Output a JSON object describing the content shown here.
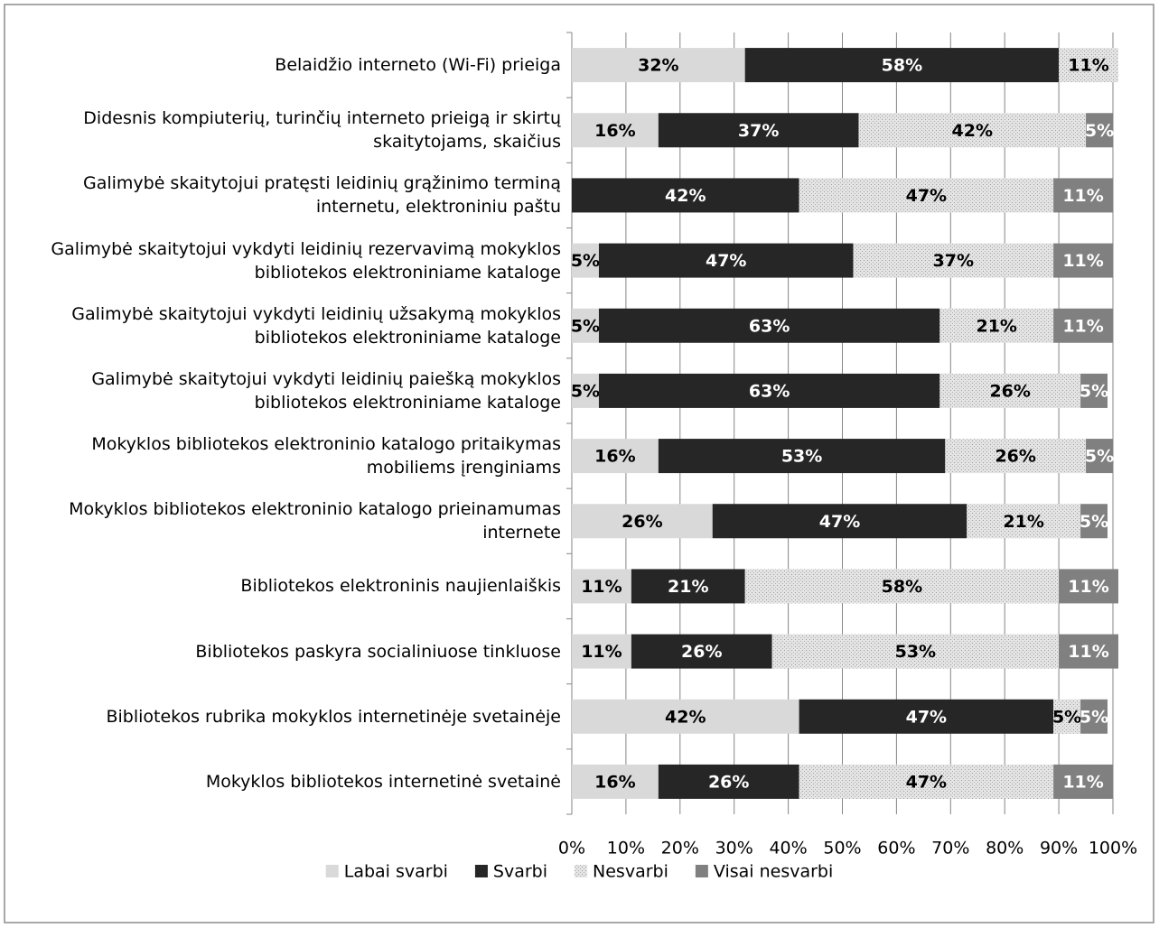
{
  "chart_data": {
    "type": "bar",
    "orientation": "horizontal",
    "stacked": true,
    "categories": [
      "Belaidžio interneto (Wi-Fi) prieiga",
      "Didesnis kompiuterių, turinčių interneto prieigą ir skirtų skaitytojams, skaičius",
      "Galimybė skaitytojui pratęsti leidinių grąžinimo terminą internetu, elektroniniu paštu",
      "Galimybė skaitytojui vykdyti leidinių rezervavimą mokyklos bibliotekos elektroniniame kataloge",
      "Galimybė skaitytojui vykdyti leidinių užsakymą mokyklos bibliotekos elektroniniame kataloge",
      "Galimybė skaitytojui vykdyti leidinių paiešką mokyklos bibliotekos elektroniniame kataloge",
      "Mokyklos bibliotekos elektroninio katalogo pritaikymas mobiliems įrenginiams",
      "Mokyklos bibliotekos elektroninio katalogo prieinamumas internete",
      "Bibliotekos elektroninis naujienlaiškis",
      "Bibliotekos paskyra socialiniuose tinkluose",
      "Bibliotekos rubrika mokyklos internetinėje svetainėje",
      "Mokyklos bibliotekos internetinė svetainė"
    ],
    "series": [
      {
        "name": "Labai svarbi",
        "color": "#d9d9d9",
        "label_color": "#000000",
        "values": [
          32,
          16,
          null,
          5,
          5,
          5,
          16,
          26,
          11,
          11,
          42,
          16
        ],
        "value_labels": [
          "32%",
          "16%",
          null,
          "5%",
          "5%",
          "5%",
          "16%",
          "26%",
          "11%",
          "11%",
          "42%",
          "16%"
        ]
      },
      {
        "name": "Svarbi",
        "color": "#262626",
        "label_color": "#ffffff",
        "values": [
          58,
          37,
          42,
          47,
          63,
          63,
          53,
          47,
          21,
          26,
          47,
          26
        ],
        "value_labels": [
          "58%",
          "37%",
          "42%",
          "47%",
          "63%",
          "63%",
          "53%",
          "47%",
          "21%",
          "26%",
          "47%",
          "26%"
        ]
      },
      {
        "name": "Nesvarbi",
        "color": "#e4e4e4",
        "pattern": "dots",
        "label_color": "#000000",
        "values": [
          11,
          42,
          47,
          37,
          21,
          26,
          26,
          21,
          58,
          53,
          5,
          47
        ],
        "value_labels": [
          "11%",
          "42%",
          "47%",
          "37%",
          "21%",
          "26%",
          "26%",
          "21%",
          "58%",
          "53%",
          "5%",
          "47%"
        ]
      },
      {
        "name": "Visai nesvarbi",
        "color": "#808080",
        "label_color": "#ffffff",
        "values": [
          null,
          5,
          11,
          11,
          11,
          5,
          5,
          5,
          11,
          11,
          5,
          11
        ],
        "value_labels": [
          null,
          "5%",
          "11%",
          "11%",
          "11%",
          "5%",
          "5%",
          "5%",
          "11%",
          "11%",
          "5%",
          "11%"
        ]
      }
    ],
    "xlim": [
      0,
      100
    ],
    "xticks": [
      {
        "value": 0,
        "label": "0%"
      },
      {
        "value": 10,
        "label": "10%"
      },
      {
        "value": 20,
        "label": "20%"
      },
      {
        "value": 30,
        "label": "30%"
      },
      {
        "value": 40,
        "label": "40%"
      },
      {
        "value": 50,
        "label": "50%"
      },
      {
        "value": 60,
        "label": "60%"
      },
      {
        "value": 70,
        "label": "70%"
      },
      {
        "value": 80,
        "label": "80%"
      },
      {
        "value": 90,
        "label": "90%"
      },
      {
        "value": 100,
        "label": "100%"
      }
    ],
    "grid": true,
    "legend": "bottom"
  }
}
